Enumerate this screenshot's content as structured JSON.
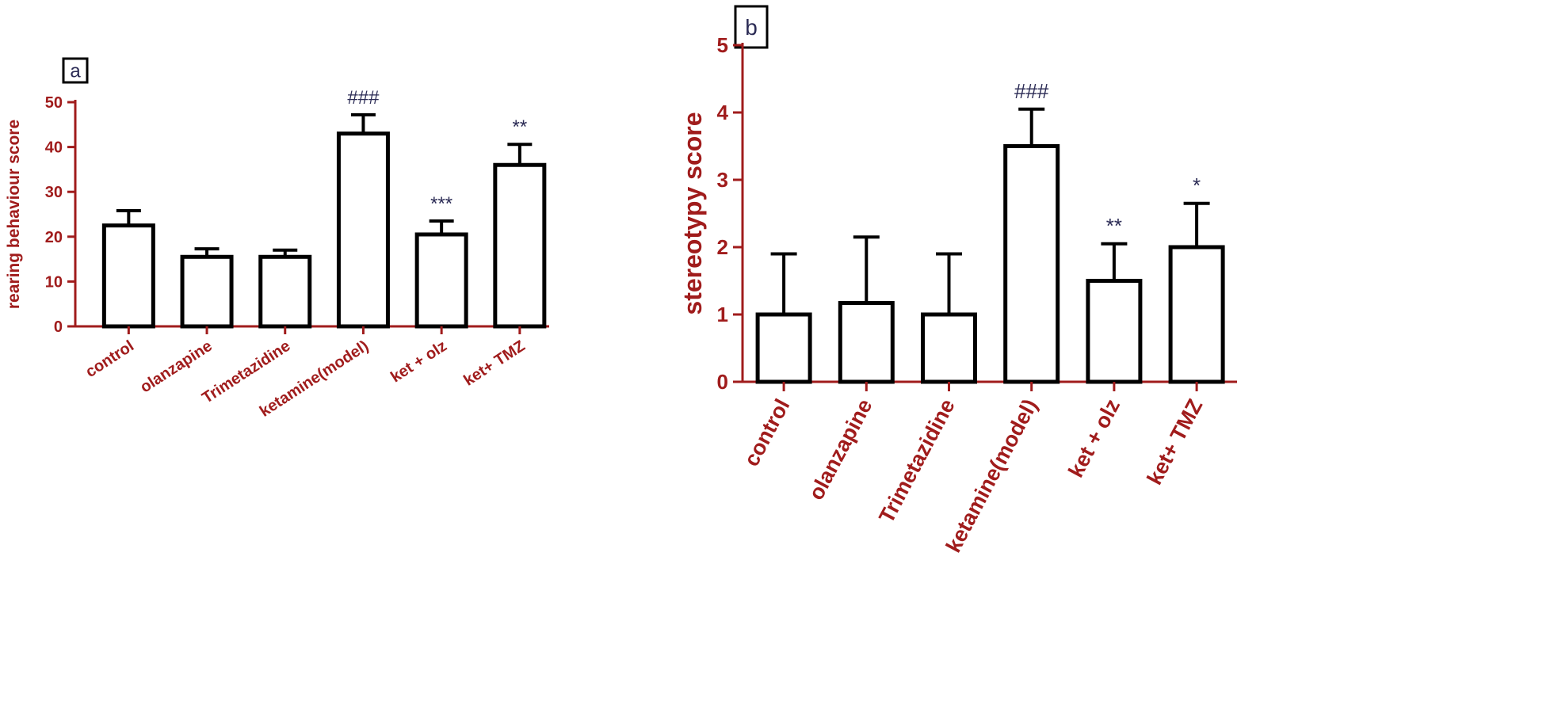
{
  "chart_data": [
    {
      "type": "bar",
      "panel_label": "a",
      "ylabel": "rearing behaviour score",
      "categories": [
        "control",
        "olanzapine",
        "Trimetazidine",
        "ketamine(model)",
        "ket + olz",
        "ket+ TMZ"
      ],
      "values": [
        22.5,
        15.5,
        15.5,
        43,
        20.5,
        36
      ],
      "errors": [
        3.3,
        1.8,
        1.5,
        4.2,
        3.0,
        4.6
      ],
      "annotations": [
        "",
        "",
        "",
        "###",
        "***",
        "**"
      ],
      "ylim": [
        0,
        50
      ],
      "yticks": [
        "0",
        "10",
        "20",
        "30",
        "40",
        "50"
      ],
      "ytick_values": [
        0,
        10,
        20,
        30,
        40,
        50
      ],
      "grid": false
    },
    {
      "type": "bar",
      "panel_label": "b",
      "ylabel": "stereotypy score",
      "categories": [
        "control",
        "olanzapine",
        "Trimetazidine",
        "ketamine(model)",
        "ket + olz",
        "ket+ TMZ"
      ],
      "values": [
        1,
        1.17,
        1,
        3.5,
        1.5,
        2
      ],
      "errors": [
        0.9,
        0.98,
        0.9,
        0.55,
        0.55,
        0.65
      ],
      "annotations": [
        "",
        "",
        "",
        "###",
        "**",
        "*"
      ],
      "ylim": [
        0,
        5
      ],
      "yticks": [
        "0",
        "1",
        "2",
        "3",
        "4",
        "5"
      ],
      "ytick_values": [
        0,
        1,
        2,
        3,
        4,
        5
      ],
      "grid": false
    }
  ],
  "colors": {
    "axis": "#a01c1c",
    "tick_label": "#a01c1c",
    "bar_stroke": "#000000",
    "bar_fill": "#ffffff",
    "annotation": "#2b2b55"
  }
}
